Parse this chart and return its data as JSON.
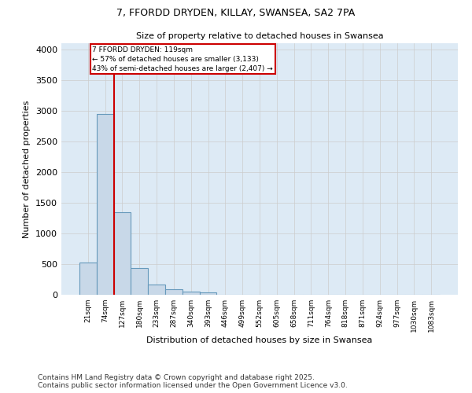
{
  "title_line1": "7, FFORDD DRYDEN, KILLAY, SWANSEA, SA2 7PA",
  "title_line2": "Size of property relative to detached houses in Swansea",
  "xlabel": "Distribution of detached houses by size in Swansea",
  "ylabel": "Number of detached properties",
  "categories": [
    "21sqm",
    "74sqm",
    "127sqm",
    "180sqm",
    "233sqm",
    "287sqm",
    "340sqm",
    "393sqm",
    "446sqm",
    "499sqm",
    "552sqm",
    "605sqm",
    "658sqm",
    "711sqm",
    "764sqm",
    "818sqm",
    "871sqm",
    "924sqm",
    "977sqm",
    "1030sqm",
    "1083sqm"
  ],
  "values": [
    530,
    2950,
    1350,
    430,
    165,
    90,
    55,
    40,
    5,
    0,
    0,
    0,
    0,
    0,
    0,
    0,
    0,
    0,
    0,
    0,
    0
  ],
  "bar_color": "#c8d8e8",
  "bar_edge_color": "#6699bb",
  "bar_linewidth": 0.8,
  "vline_x": 1.5,
  "vline_color": "#cc0000",
  "vline_linewidth": 1.5,
  "annotation_text": "7 FFORDD DRYDEN: 119sqm\n← 57% of detached houses are smaller (3,133)\n43% of semi-detached houses are larger (2,407) →",
  "annotation_box_color": "#cc0000",
  "annotation_fontsize": 6.5,
  "ylim": [
    0,
    4100
  ],
  "yticks": [
    0,
    500,
    1000,
    1500,
    2000,
    2500,
    3000,
    3500,
    4000
  ],
  "grid_color": "#cccccc",
  "bg_color": "#ddeaf5",
  "footer_line1": "Contains HM Land Registry data © Crown copyright and database right 2025.",
  "footer_line2": "Contains public sector information licensed under the Open Government Licence v3.0.",
  "footer_fontsize": 6.5,
  "title1_fontsize": 9,
  "title2_fontsize": 8,
  "xlabel_fontsize": 8,
  "ylabel_fontsize": 8
}
